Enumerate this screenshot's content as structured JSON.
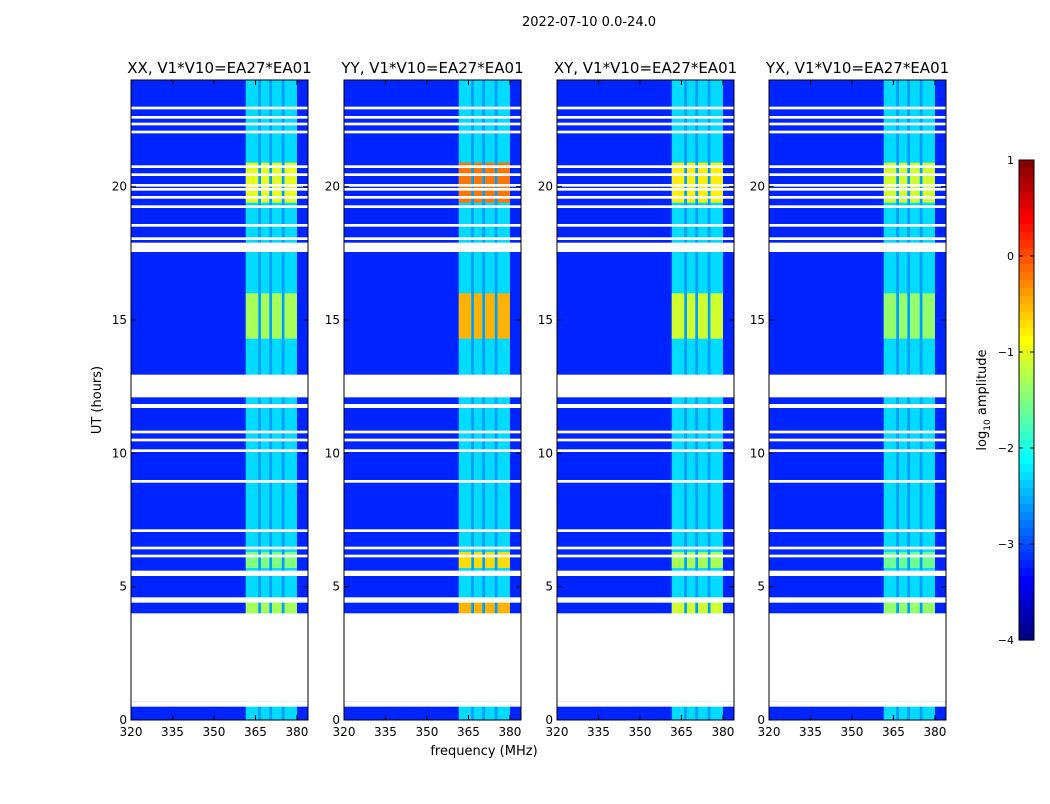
{
  "figure_title": "2022-07-10 0.0-24.0",
  "ylabel": "UT (hours)",
  "xlabel": "frequency (MHz)",
  "colorbar": {
    "label": "log10 amplitude",
    "label_base": "log",
    "label_sub": "10",
    "label_rest": " amplitude",
    "ticks": [
      "1",
      "0",
      "−1",
      "−2",
      "−3",
      "−4"
    ],
    "range": [
      -4,
      1
    ],
    "colormap": "jet"
  },
  "chart_data": {
    "type": "heatmap",
    "title": "2022-07-10 0.0-24.0",
    "xlabel": "frequency (MHz)",
    "ylabel": "UT (hours)",
    "xlim": [
      320,
      384
    ],
    "ylim": [
      0,
      24
    ],
    "xticks": [
      320,
      335,
      350,
      365,
      380
    ],
    "yticks": [
      0,
      5,
      10,
      15,
      20
    ],
    "value_label": "log10 amplitude",
    "value_range": [
      -4,
      1
    ],
    "panels": [
      {
        "title": "XX, V1*V10=EA27*EA01",
        "band_level": -1.0
      },
      {
        "title": "YY, V1*V10=EA27*EA01",
        "band_level": -0.2
      },
      {
        "title": "XY, V1*V10=EA27*EA01",
        "band_level": -0.8
      },
      {
        "title": "YX, V1*V10=EA27*EA01",
        "band_level": -1.1
      }
    ],
    "rfi_band_mhz": [
      361.5,
      380
    ],
    "rfi_columns_mhz": [
      [
        361.5,
        366
      ],
      [
        367,
        370
      ],
      [
        371,
        374.5
      ],
      [
        375.5,
        380
      ]
    ],
    "flagged_hours": [
      [
        0.5,
        0.7
      ],
      [
        0.7,
        4.0
      ],
      [
        4.4,
        4.6
      ],
      [
        5.4,
        5.6
      ],
      [
        6.1,
        6.2
      ],
      [
        6.4,
        6.5
      ],
      [
        7.05,
        7.15
      ],
      [
        8.9,
        9.0
      ],
      [
        10.05,
        10.15
      ],
      [
        10.45,
        10.55
      ],
      [
        10.75,
        10.85
      ],
      [
        11.7,
        11.85
      ],
      [
        12.1,
        12.95
      ],
      [
        17.55,
        17.9
      ],
      [
        18.0,
        18.1
      ],
      [
        18.5,
        18.6
      ],
      [
        19.2,
        19.3
      ],
      [
        19.55,
        19.65
      ],
      [
        19.85,
        19.95
      ],
      [
        20.0,
        20.1
      ],
      [
        20.4,
        20.5
      ],
      [
        20.7,
        20.8
      ],
      [
        22.0,
        22.1
      ],
      [
        22.3,
        22.4
      ],
      [
        22.55,
        22.65
      ],
      [
        22.9,
        23.0
      ]
    ]
  }
}
